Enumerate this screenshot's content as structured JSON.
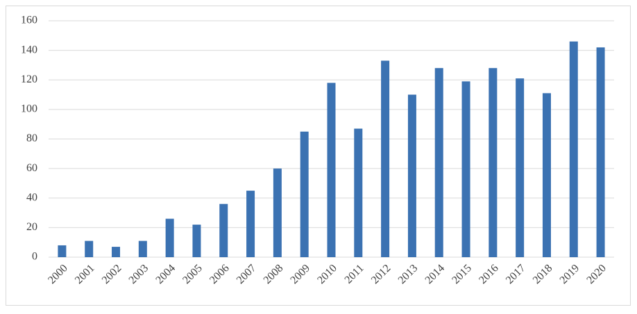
{
  "chart_data": {
    "type": "bar",
    "categories": [
      "2000",
      "2001",
      "2002",
      "2003",
      "2004",
      "2005",
      "2006",
      "2007",
      "2008",
      "2009",
      "2010",
      "2011",
      "2012",
      "2013",
      "2014",
      "2015",
      "2016",
      "2017",
      "2018",
      "2019",
      "2020"
    ],
    "values": [
      8,
      11,
      7,
      11,
      26,
      22,
      36,
      45,
      60,
      85,
      118,
      87,
      133,
      110,
      128,
      119,
      128,
      121,
      111,
      146,
      142
    ],
    "color": "#3b72b2",
    "ylim": [
      0,
      160
    ],
    "yticks": [
      0,
      20,
      40,
      60,
      80,
      100,
      120,
      140,
      160
    ],
    "grid": true
  }
}
